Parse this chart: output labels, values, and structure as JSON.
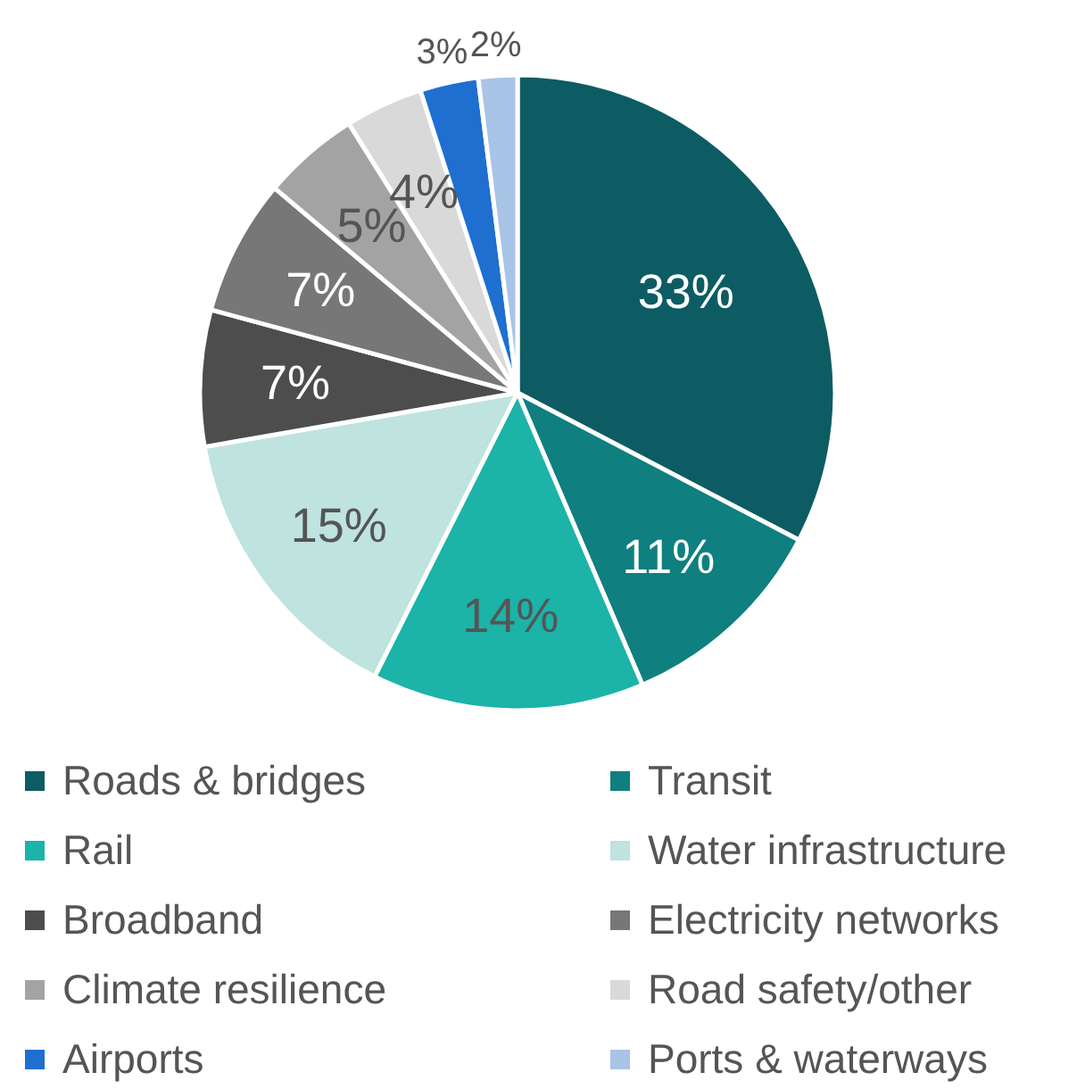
{
  "chart_data": {
    "type": "pie",
    "categories": [
      "Roads & bridges",
      "Transit",
      "Rail",
      "Water infrastructure",
      "Broadband",
      "Electricity networks",
      "Climate resilience",
      "Road safety/other",
      "Airports",
      "Ports & waterways"
    ],
    "values": [
      33,
      11,
      14,
      15,
      7,
      7,
      5,
      4,
      3,
      2
    ],
    "colors": [
      "#0d5c63",
      "#0f7f80",
      "#1cb3a8",
      "#bfe3df",
      "#4d4d4d",
      "#777777",
      "#a3a3a3",
      "#d9d9d9",
      "#1f6fd1",
      "#a8c4e6"
    ],
    "value_labels": [
      "33%",
      "11%",
      "14%",
      "15%",
      "7%",
      "7%",
      "5%",
      "4%",
      "3%",
      "2%"
    ],
    "legend": "bottom"
  }
}
